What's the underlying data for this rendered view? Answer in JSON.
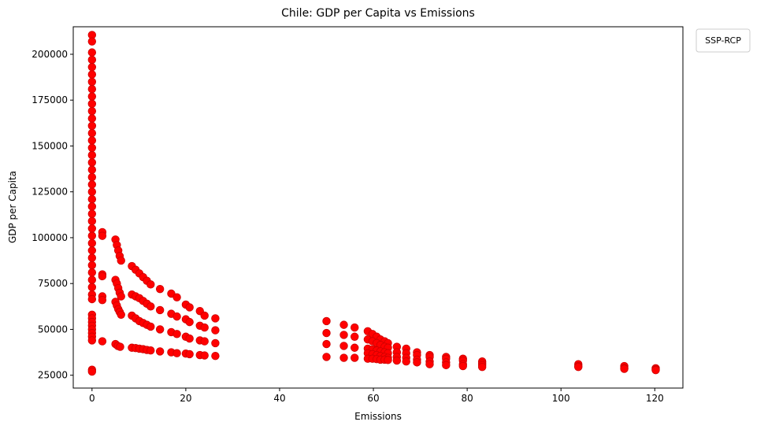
{
  "chart_data": {
    "type": "scatter",
    "title": "Chile: GDP per Capita vs Emissions",
    "xlabel": "Emissions",
    "ylabel": "GDP per Capita",
    "xlim": [
      -4,
      126
    ],
    "ylim": [
      18000,
      215000
    ],
    "xticks": [
      0,
      20,
      40,
      60,
      80,
      100,
      120
    ],
    "yticks": [
      25000,
      50000,
      75000,
      100000,
      125000,
      150000,
      175000,
      200000
    ],
    "grid": false,
    "legend": {
      "title": "SSP-RCP",
      "placement": "outside-top-right",
      "entries": []
    },
    "marker_color": "#ff0000",
    "marker_edge_color": "#cc0000",
    "series": [
      {
        "points": [
          [
            0,
            210500
          ],
          [
            0,
            207000
          ],
          [
            0,
            201000
          ],
          [
            0,
            197000
          ],
          [
            0,
            193000
          ],
          [
            0,
            189000
          ],
          [
            0,
            185000
          ],
          [
            0,
            181000
          ],
          [
            0,
            177000
          ],
          [
            0,
            173000
          ],
          [
            0,
            169000
          ],
          [
            0,
            165000
          ],
          [
            0,
            161000
          ],
          [
            0,
            157000
          ],
          [
            0,
            153000
          ],
          [
            0,
            149000
          ],
          [
            0,
            145000
          ],
          [
            0,
            141000
          ],
          [
            0,
            137000
          ],
          [
            0,
            133000
          ],
          [
            0,
            129000
          ],
          [
            0,
            125000
          ],
          [
            0,
            121000
          ],
          [
            0,
            117000
          ],
          [
            0,
            113000
          ],
          [
            0,
            109000
          ],
          [
            0,
            105000
          ],
          [
            0,
            101000
          ],
          [
            0,
            97000
          ],
          [
            0,
            93000
          ],
          [
            0,
            89000
          ],
          [
            0,
            85000
          ],
          [
            0,
            81000
          ],
          [
            0,
            77000
          ],
          [
            0,
            73000
          ],
          [
            0,
            69000
          ],
          [
            0,
            66500
          ],
          [
            0,
            58000
          ],
          [
            0,
            56000
          ],
          [
            0,
            54000
          ],
          [
            0,
            52000
          ],
          [
            0,
            50000
          ],
          [
            0,
            48000
          ],
          [
            0,
            46000
          ],
          [
            0,
            44000
          ],
          [
            0,
            28000
          ],
          [
            0,
            27000
          ],
          [
            2.2,
            103000
          ],
          [
            2.2,
            101000
          ],
          [
            2.2,
            80000
          ],
          [
            2.2,
            79000
          ],
          [
            2.2,
            68000
          ],
          [
            2.2,
            66000
          ],
          [
            2.2,
            43500
          ],
          [
            5.0,
            99000
          ],
          [
            5.3,
            96000
          ],
          [
            5.6,
            93000
          ],
          [
            5.9,
            90000
          ],
          [
            6.2,
            87500
          ],
          [
            5.0,
            77000
          ],
          [
            5.3,
            75000
          ],
          [
            5.6,
            72500
          ],
          [
            5.9,
            70000
          ],
          [
            6.2,
            68000
          ],
          [
            5.0,
            65000
          ],
          [
            5.3,
            63000
          ],
          [
            5.6,
            61000
          ],
          [
            5.9,
            59500
          ],
          [
            6.2,
            58000
          ],
          [
            5.0,
            42000
          ],
          [
            5.5,
            41000
          ],
          [
            6.0,
            40500
          ],
          [
            8.5,
            84500
          ],
          [
            9.3,
            82500
          ],
          [
            10.1,
            80500
          ],
          [
            10.9,
            78500
          ],
          [
            11.7,
            76500
          ],
          [
            12.5,
            74500
          ],
          [
            14.5,
            72000
          ],
          [
            16.9,
            69500
          ],
          [
            18.1,
            67500
          ],
          [
            20.0,
            63500
          ],
          [
            20.8,
            62000
          ],
          [
            23.0,
            60000
          ],
          [
            24.0,
            57500
          ],
          [
            26.3,
            56000
          ],
          [
            8.5,
            69000
          ],
          [
            9.3,
            68000
          ],
          [
            10.1,
            67000
          ],
          [
            10.9,
            65500
          ],
          [
            11.7,
            64000
          ],
          [
            12.5,
            62500
          ],
          [
            14.5,
            60500
          ],
          [
            16.9,
            58500
          ],
          [
            18.1,
            57000
          ],
          [
            20.0,
            55500
          ],
          [
            20.8,
            54000
          ],
          [
            23.0,
            52000
          ],
          [
            24.0,
            51000
          ],
          [
            26.3,
            49500
          ],
          [
            8.5,
            57500
          ],
          [
            9.3,
            56000
          ],
          [
            10.1,
            54500
          ],
          [
            10.9,
            53500
          ],
          [
            11.7,
            52500
          ],
          [
            12.5,
            51500
          ],
          [
            14.5,
            50000
          ],
          [
            16.9,
            48500
          ],
          [
            18.1,
            47500
          ],
          [
            20.0,
            46000
          ],
          [
            20.8,
            45000
          ],
          [
            23.0,
            44000
          ],
          [
            24.0,
            43500
          ],
          [
            26.3,
            42500
          ],
          [
            8.5,
            40000
          ],
          [
            9.3,
            39800
          ],
          [
            10.1,
            39500
          ],
          [
            10.9,
            39200
          ],
          [
            11.7,
            38800
          ],
          [
            12.5,
            38500
          ],
          [
            14.5,
            38000
          ],
          [
            16.9,
            37500
          ],
          [
            18.1,
            37000
          ],
          [
            20.0,
            36800
          ],
          [
            20.8,
            36500
          ],
          [
            23.0,
            36000
          ],
          [
            24.0,
            35800
          ],
          [
            26.3,
            35500
          ],
          [
            50.0,
            54500
          ],
          [
            53.7,
            52500
          ],
          [
            56.0,
            51000
          ],
          [
            58.8,
            49000
          ],
          [
            59.8,
            47500
          ],
          [
            60.7,
            46000
          ],
          [
            61.5,
            44500
          ],
          [
            62.4,
            43500
          ],
          [
            63.1,
            42500
          ],
          [
            50.0,
            48000
          ],
          [
            53.7,
            47000
          ],
          [
            56.0,
            46000
          ],
          [
            58.8,
            44500
          ],
          [
            59.8,
            43500
          ],
          [
            60.7,
            42500
          ],
          [
            61.5,
            41500
          ],
          [
            62.4,
            40500
          ],
          [
            63.1,
            40000
          ],
          [
            65.0,
            40500
          ],
          [
            67.0,
            39500
          ],
          [
            69.3,
            37500
          ],
          [
            72.0,
            36000
          ],
          [
            75.5,
            35000
          ],
          [
            79.1,
            34000
          ],
          [
            83.2,
            32500
          ],
          [
            50.0,
            42000
          ],
          [
            53.7,
            41000
          ],
          [
            56.0,
            40000
          ],
          [
            58.8,
            39500
          ],
          [
            59.8,
            39000
          ],
          [
            60.7,
            38500
          ],
          [
            61.5,
            38000
          ],
          [
            62.4,
            37500
          ],
          [
            63.1,
            37000
          ],
          [
            65.0,
            37500
          ],
          [
            67.0,
            37000
          ],
          [
            69.3,
            36000
          ],
          [
            72.0,
            35000
          ],
          [
            75.5,
            34000
          ],
          [
            79.1,
            33000
          ],
          [
            83.2,
            31500
          ],
          [
            58.8,
            37000
          ],
          [
            59.8,
            36500
          ],
          [
            60.7,
            36000
          ],
          [
            61.5,
            35500
          ],
          [
            62.4,
            35000
          ],
          [
            63.1,
            34500
          ],
          [
            65.0,
            35000
          ],
          [
            67.0,
            34500
          ],
          [
            69.3,
            33500
          ],
          [
            72.0,
            32500
          ],
          [
            75.5,
            32000
          ],
          [
            79.1,
            31000
          ],
          [
            83.2,
            30500
          ],
          [
            50.0,
            35000
          ],
          [
            53.7,
            34500
          ],
          [
            56.0,
            34500
          ],
          [
            58.8,
            34000
          ],
          [
            59.8,
            34000
          ],
          [
            60.7,
            33800
          ],
          [
            61.5,
            33500
          ],
          [
            62.4,
            33500
          ],
          [
            63.1,
            33300
          ],
          [
            65.0,
            33000
          ],
          [
            67.0,
            32500
          ],
          [
            69.3,
            32000
          ],
          [
            72.0,
            31000
          ],
          [
            75.5,
            30500
          ],
          [
            79.1,
            30000
          ],
          [
            83.2,
            29500
          ],
          [
            103.7,
            31000
          ],
          [
            103.7,
            30000
          ],
          [
            103.7,
            29500
          ],
          [
            113.5,
            30000
          ],
          [
            113.5,
            29000
          ],
          [
            113.5,
            28500
          ],
          [
            120.2,
            28800
          ],
          [
            120.2,
            28200
          ],
          [
            120.2,
            27800
          ]
        ]
      }
    ]
  }
}
